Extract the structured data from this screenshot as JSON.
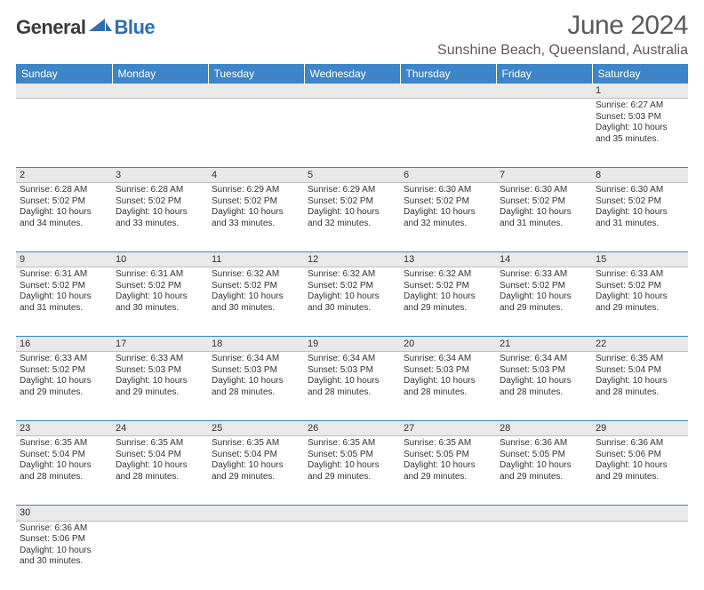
{
  "logo": {
    "dark": "General",
    "blue": "Blue",
    "shape_color": "#2f6fb0"
  },
  "title": "June 2024",
  "location": "Sunshine Beach, Queensland, Australia",
  "colors": {
    "header_bg": "#3d85c6",
    "header_fg": "#ffffff",
    "daynum_bg": "#e9e9e9",
    "rule": "#3d85c6",
    "text": "#333333",
    "title_fg": "#5a5a5a"
  },
  "weekdays": [
    "Sunday",
    "Monday",
    "Tuesday",
    "Wednesday",
    "Thursday",
    "Friday",
    "Saturday"
  ],
  "labels": {
    "sunrise": "Sunrise:",
    "sunset": "Sunset:",
    "daylight": "Daylight:"
  },
  "weeks": [
    [
      null,
      null,
      null,
      null,
      null,
      null,
      {
        "n": "1",
        "sr": "6:27 AM",
        "ss": "5:03 PM",
        "dl": "10 hours and 35 minutes."
      }
    ],
    [
      {
        "n": "2",
        "sr": "6:28 AM",
        "ss": "5:02 PM",
        "dl": "10 hours and 34 minutes."
      },
      {
        "n": "3",
        "sr": "6:28 AM",
        "ss": "5:02 PM",
        "dl": "10 hours and 33 minutes."
      },
      {
        "n": "4",
        "sr": "6:29 AM",
        "ss": "5:02 PM",
        "dl": "10 hours and 33 minutes."
      },
      {
        "n": "5",
        "sr": "6:29 AM",
        "ss": "5:02 PM",
        "dl": "10 hours and 32 minutes."
      },
      {
        "n": "6",
        "sr": "6:30 AM",
        "ss": "5:02 PM",
        "dl": "10 hours and 32 minutes."
      },
      {
        "n": "7",
        "sr": "6:30 AM",
        "ss": "5:02 PM",
        "dl": "10 hours and 31 minutes."
      },
      {
        "n": "8",
        "sr": "6:30 AM",
        "ss": "5:02 PM",
        "dl": "10 hours and 31 minutes."
      }
    ],
    [
      {
        "n": "9",
        "sr": "6:31 AM",
        "ss": "5:02 PM",
        "dl": "10 hours and 31 minutes."
      },
      {
        "n": "10",
        "sr": "6:31 AM",
        "ss": "5:02 PM",
        "dl": "10 hours and 30 minutes."
      },
      {
        "n": "11",
        "sr": "6:32 AM",
        "ss": "5:02 PM",
        "dl": "10 hours and 30 minutes."
      },
      {
        "n": "12",
        "sr": "6:32 AM",
        "ss": "5:02 PM",
        "dl": "10 hours and 30 minutes."
      },
      {
        "n": "13",
        "sr": "6:32 AM",
        "ss": "5:02 PM",
        "dl": "10 hours and 29 minutes."
      },
      {
        "n": "14",
        "sr": "6:33 AM",
        "ss": "5:02 PM",
        "dl": "10 hours and 29 minutes."
      },
      {
        "n": "15",
        "sr": "6:33 AM",
        "ss": "5:02 PM",
        "dl": "10 hours and 29 minutes."
      }
    ],
    [
      {
        "n": "16",
        "sr": "6:33 AM",
        "ss": "5:02 PM",
        "dl": "10 hours and 29 minutes."
      },
      {
        "n": "17",
        "sr": "6:33 AM",
        "ss": "5:03 PM",
        "dl": "10 hours and 29 minutes."
      },
      {
        "n": "18",
        "sr": "6:34 AM",
        "ss": "5:03 PM",
        "dl": "10 hours and 28 minutes."
      },
      {
        "n": "19",
        "sr": "6:34 AM",
        "ss": "5:03 PM",
        "dl": "10 hours and 28 minutes."
      },
      {
        "n": "20",
        "sr": "6:34 AM",
        "ss": "5:03 PM",
        "dl": "10 hours and 28 minutes."
      },
      {
        "n": "21",
        "sr": "6:34 AM",
        "ss": "5:03 PM",
        "dl": "10 hours and 28 minutes."
      },
      {
        "n": "22",
        "sr": "6:35 AM",
        "ss": "5:04 PM",
        "dl": "10 hours and 28 minutes."
      }
    ],
    [
      {
        "n": "23",
        "sr": "6:35 AM",
        "ss": "5:04 PM",
        "dl": "10 hours and 28 minutes."
      },
      {
        "n": "24",
        "sr": "6:35 AM",
        "ss": "5:04 PM",
        "dl": "10 hours and 28 minutes."
      },
      {
        "n": "25",
        "sr": "6:35 AM",
        "ss": "5:04 PM",
        "dl": "10 hours and 29 minutes."
      },
      {
        "n": "26",
        "sr": "6:35 AM",
        "ss": "5:05 PM",
        "dl": "10 hours and 29 minutes."
      },
      {
        "n": "27",
        "sr": "6:35 AM",
        "ss": "5:05 PM",
        "dl": "10 hours and 29 minutes."
      },
      {
        "n": "28",
        "sr": "6:36 AM",
        "ss": "5:05 PM",
        "dl": "10 hours and 29 minutes."
      },
      {
        "n": "29",
        "sr": "6:36 AM",
        "ss": "5:06 PM",
        "dl": "10 hours and 29 minutes."
      }
    ],
    [
      {
        "n": "30",
        "sr": "6:36 AM",
        "ss": "5:06 PM",
        "dl": "10 hours and 30 minutes."
      },
      null,
      null,
      null,
      null,
      null,
      null
    ]
  ]
}
